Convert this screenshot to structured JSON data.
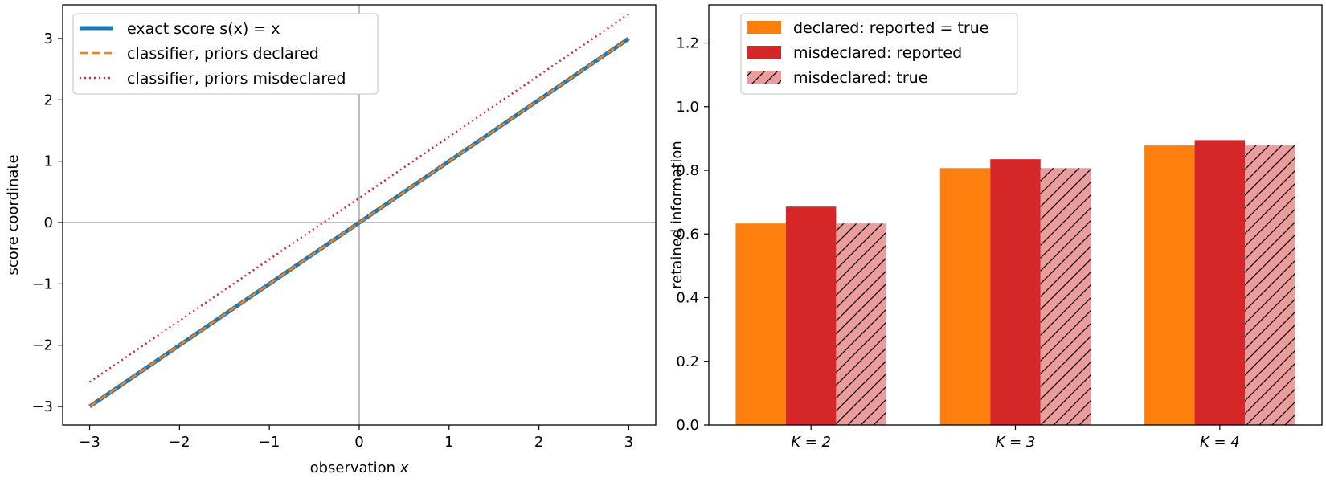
{
  "chart_data": [
    {
      "type": "line",
      "xlabel": "observation x",
      "ylabel": "score coordinate",
      "xlim": [
        -3.3,
        3.3
      ],
      "ylim": [
        -3.3,
        3.55
      ],
      "xticks": [
        "−3",
        "−2",
        "−1",
        "0",
        "1",
        "2",
        "3"
      ],
      "yticks": [
        "−3",
        "−2",
        "−1",
        "0",
        "1",
        "2",
        "3"
      ],
      "reference_lines": {
        "x": 0,
        "y": 0,
        "color": "#999999"
      },
      "legend_position": "upper-left",
      "series": [
        {
          "name": "exact score s(x) = x",
          "color": "#1f77b4",
          "style": "solid",
          "x": [
            -3,
            3
          ],
          "y": [
            -3,
            3
          ]
        },
        {
          "name": "classifier, priors declared",
          "color": "#ff7f0e",
          "style": "dashed",
          "x": [
            -3,
            3
          ],
          "y": [
            -3,
            3
          ]
        },
        {
          "name": "classifier, priors misdeclared",
          "color": "#d62728",
          "style": "dotted",
          "x": [
            -3,
            3
          ],
          "y": [
            -2.6,
            3.4
          ]
        }
      ]
    },
    {
      "type": "bar",
      "ylabel": "retained information",
      "xlabel": "",
      "ylim": [
        0,
        1.32
      ],
      "yticks": [
        "0.0",
        "0.2",
        "0.4",
        "0.6",
        "0.8",
        "1.0",
        "1.2"
      ],
      "categories": [
        "K = 2",
        "K = 3",
        "K = 4"
      ],
      "legend_position": "upper-left",
      "series": [
        {
          "name": "declared: reported = true",
          "color": "#ff7f0e",
          "hatch": false,
          "values": [
            0.633,
            0.807,
            0.878
          ]
        },
        {
          "name": "misdeclared: reported",
          "color": "#d62728",
          "hatch": false,
          "values": [
            0.686,
            0.835,
            0.895
          ]
        },
        {
          "name": "misdeclared: true",
          "color": "#eb9c9d",
          "hatch": true,
          "values": [
            0.633,
            0.807,
            0.878
          ]
        }
      ]
    }
  ]
}
